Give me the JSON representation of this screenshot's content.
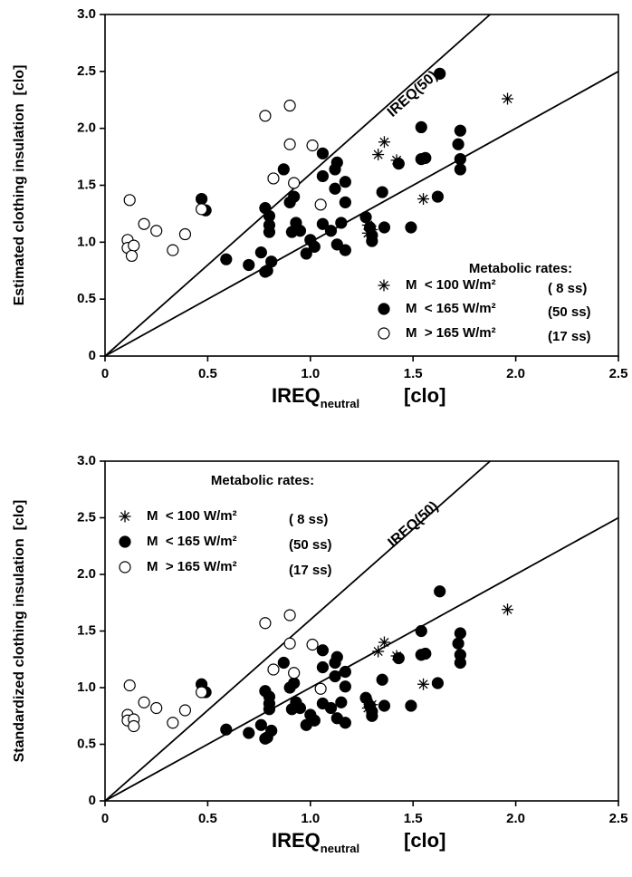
{
  "chart_data": [
    {
      "type": "scatter",
      "y_label": "Estimated clothing insulation  [clo]",
      "x_label": {
        "main": "IREQ",
        "sub": "neutral",
        "unit": "[clo]"
      },
      "xlim": [
        0,
        2.5
      ],
      "ylim": [
        0,
        3
      ],
      "xticks": [
        0,
        0.5,
        {
          "value": 1,
          "label": "1.0"
        },
        1.5,
        {
          "value": 2,
          "label": "2.0"
        },
        2.5
      ],
      "yticks": [
        0,
        0.5,
        {
          "value": 1,
          "label": "1.0"
        },
        1.5,
        {
          "value": 2,
          "label": "2.0"
        },
        2.5,
        {
          "value": 3,
          "label": "3.0"
        }
      ],
      "legend_title": "Metabolic rates:",
      "legend_position": "lower right",
      "reference_lines": [
        {
          "label": "IREQ(50)",
          "x": [
            0,
            1.875
          ],
          "y": [
            0,
            3
          ]
        },
        {
          "x": [
            0,
            2.5
          ],
          "y": [
            0,
            2.5
          ]
        }
      ],
      "series": [
        {
          "name": "M  < 100 W/m²",
          "sample": "( 8 ss)",
          "marker": "asterisk",
          "color": "#000000",
          "x": [
            1.36,
            1.33,
            1.42,
            1.28,
            1.28,
            1.3,
            1.55,
            1.96
          ],
          "values": [
            1.88,
            1.77,
            1.72,
            1.15,
            1.08,
            1.11,
            1.38,
            2.26
          ]
        },
        {
          "name": "M  < 165 W/m²",
          "sample": "(50 ss)",
          "marker": "filled",
          "color": "#000000",
          "x": [
            0.47,
            0.49,
            0.59,
            0.7,
            0.76,
            0.78,
            0.79,
            0.78,
            0.8,
            0.8,
            0.8,
            0.81,
            0.87,
            0.9,
            0.92,
            0.93,
            0.91,
            0.95,
            0.98,
            1.0,
            1.02,
            1.06,
            1.06,
            1.06,
            1.1,
            1.12,
            1.13,
            1.12,
            1.13,
            1.15,
            1.17,
            1.17,
            1.17,
            1.27,
            1.3,
            1.35,
            1.36,
            1.43,
            1.49,
            1.54,
            1.54,
            1.56,
            1.62,
            1.63,
            1.73,
            1.72,
            1.73,
            1.73,
            1.29,
            1.3
          ],
          "values": [
            1.38,
            1.28,
            0.85,
            0.8,
            0.91,
            0.74,
            0.75,
            1.3,
            1.23,
            1.15,
            1.09,
            0.83,
            1.64,
            1.35,
            1.4,
            1.17,
            1.09,
            1.1,
            0.9,
            1.02,
            0.96,
            1.78,
            1.58,
            1.16,
            1.1,
            1.64,
            1.7,
            1.47,
            0.98,
            1.17,
            1.53,
            1.35,
            0.93,
            1.22,
            1.01,
            1.44,
            1.13,
            1.69,
            1.13,
            2.01,
            1.73,
            1.74,
            1.4,
            2.48,
            1.98,
            1.86,
            1.73,
            1.64,
            1.13,
            1.06
          ]
        },
        {
          "name": "M  > 165 W/m²",
          "sample": "(17 ss)",
          "marker": "open",
          "color": "#000000",
          "x": [
            0.12,
            0.11,
            0.11,
            0.14,
            0.13,
            0.19,
            0.25,
            0.33,
            0.39,
            0.47,
            0.78,
            0.9,
            0.9,
            1.01,
            0.82,
            0.92,
            1.05
          ],
          "values": [
            1.37,
            1.02,
            0.95,
            0.97,
            0.88,
            1.16,
            1.1,
            0.93,
            1.07,
            1.29,
            2.11,
            2.2,
            1.86,
            1.85,
            1.56,
            1.52,
            1.33
          ]
        }
      ]
    },
    {
      "type": "scatter",
      "y_label": "Standardized clothing insulation  [clo]",
      "x_label": {
        "main": "IREQ",
        "sub": "neutral",
        "unit": "[clo]"
      },
      "xlim": [
        0,
        2.5
      ],
      "ylim": [
        0,
        3
      ],
      "xticks": [
        0,
        0.5,
        {
          "value": 1,
          "label": "1.0"
        },
        1.5,
        {
          "value": 2,
          "label": "2.0"
        },
        2.5
      ],
      "yticks": [
        0,
        0.5,
        {
          "value": 1,
          "label": "1.0"
        },
        1.5,
        {
          "value": 2,
          "label": "2.0"
        },
        2.5,
        {
          "value": 3,
          "label": "3.0"
        }
      ],
      "legend_title": "Metabolic rates:",
      "legend_position": "upper left",
      "reference_lines": [
        {
          "label": "IREQ(50)",
          "x": [
            0,
            1.875
          ],
          "y": [
            0,
            3
          ]
        },
        {
          "x": [
            0,
            2.5
          ],
          "y": [
            0,
            2.5
          ]
        }
      ],
      "series": [
        {
          "name": "M  < 100 W/m²",
          "sample": "( 8 ss)",
          "marker": "asterisk",
          "color": "#000000",
          "x": [
            1.36,
            1.33,
            1.42,
            1.28,
            1.28,
            1.3,
            1.55,
            1.96
          ],
          "values": [
            1.4,
            1.32,
            1.28,
            0.87,
            0.82,
            0.85,
            1.03,
            1.69
          ]
        },
        {
          "name": "M  < 165 W/m²",
          "sample": "(50 ss)",
          "marker": "filled",
          "color": "#000000",
          "x": [
            0.47,
            0.49,
            0.59,
            0.7,
            0.76,
            0.78,
            0.79,
            0.78,
            0.8,
            0.8,
            0.8,
            0.81,
            0.87,
            0.9,
            0.92,
            0.93,
            0.91,
            0.95,
            0.98,
            1.0,
            1.02,
            1.06,
            1.06,
            1.06,
            1.1,
            1.12,
            1.13,
            1.12,
            1.13,
            1.15,
            1.17,
            1.17,
            1.17,
            1.27,
            1.3,
            1.35,
            1.36,
            1.43,
            1.49,
            1.54,
            1.54,
            1.56,
            1.62,
            1.63,
            1.73,
            1.72,
            1.73,
            1.73,
            1.29,
            1.3
          ],
          "values": [
            1.03,
            0.96,
            0.63,
            0.6,
            0.67,
            0.55,
            0.56,
            0.97,
            0.92,
            0.86,
            0.81,
            0.62,
            1.22,
            1.0,
            1.04,
            0.87,
            0.81,
            0.82,
            0.67,
            0.76,
            0.71,
            1.33,
            1.18,
            0.86,
            0.82,
            1.22,
            1.27,
            1.1,
            0.73,
            0.87,
            1.14,
            1.01,
            0.69,
            0.91,
            0.75,
            1.07,
            0.84,
            1.26,
            0.84,
            1.5,
            1.29,
            1.3,
            1.04,
            1.85,
            1.48,
            1.39,
            1.29,
            1.22,
            0.84,
            0.79
          ]
        },
        {
          "name": "M  > 165 W/m²",
          "sample": "(17 ss)",
          "marker": "open",
          "color": "#000000",
          "x": [
            0.12,
            0.11,
            0.11,
            0.14,
            0.14,
            0.19,
            0.25,
            0.33,
            0.39,
            0.47,
            0.78,
            0.9,
            0.9,
            1.01,
            0.82,
            0.92,
            1.05
          ],
          "values": [
            1.02,
            0.76,
            0.71,
            0.72,
            0.66,
            0.87,
            0.82,
            0.69,
            0.8,
            0.96,
            1.57,
            1.64,
            1.39,
            1.38,
            1.16,
            1.13,
            0.99
          ]
        }
      ]
    }
  ]
}
